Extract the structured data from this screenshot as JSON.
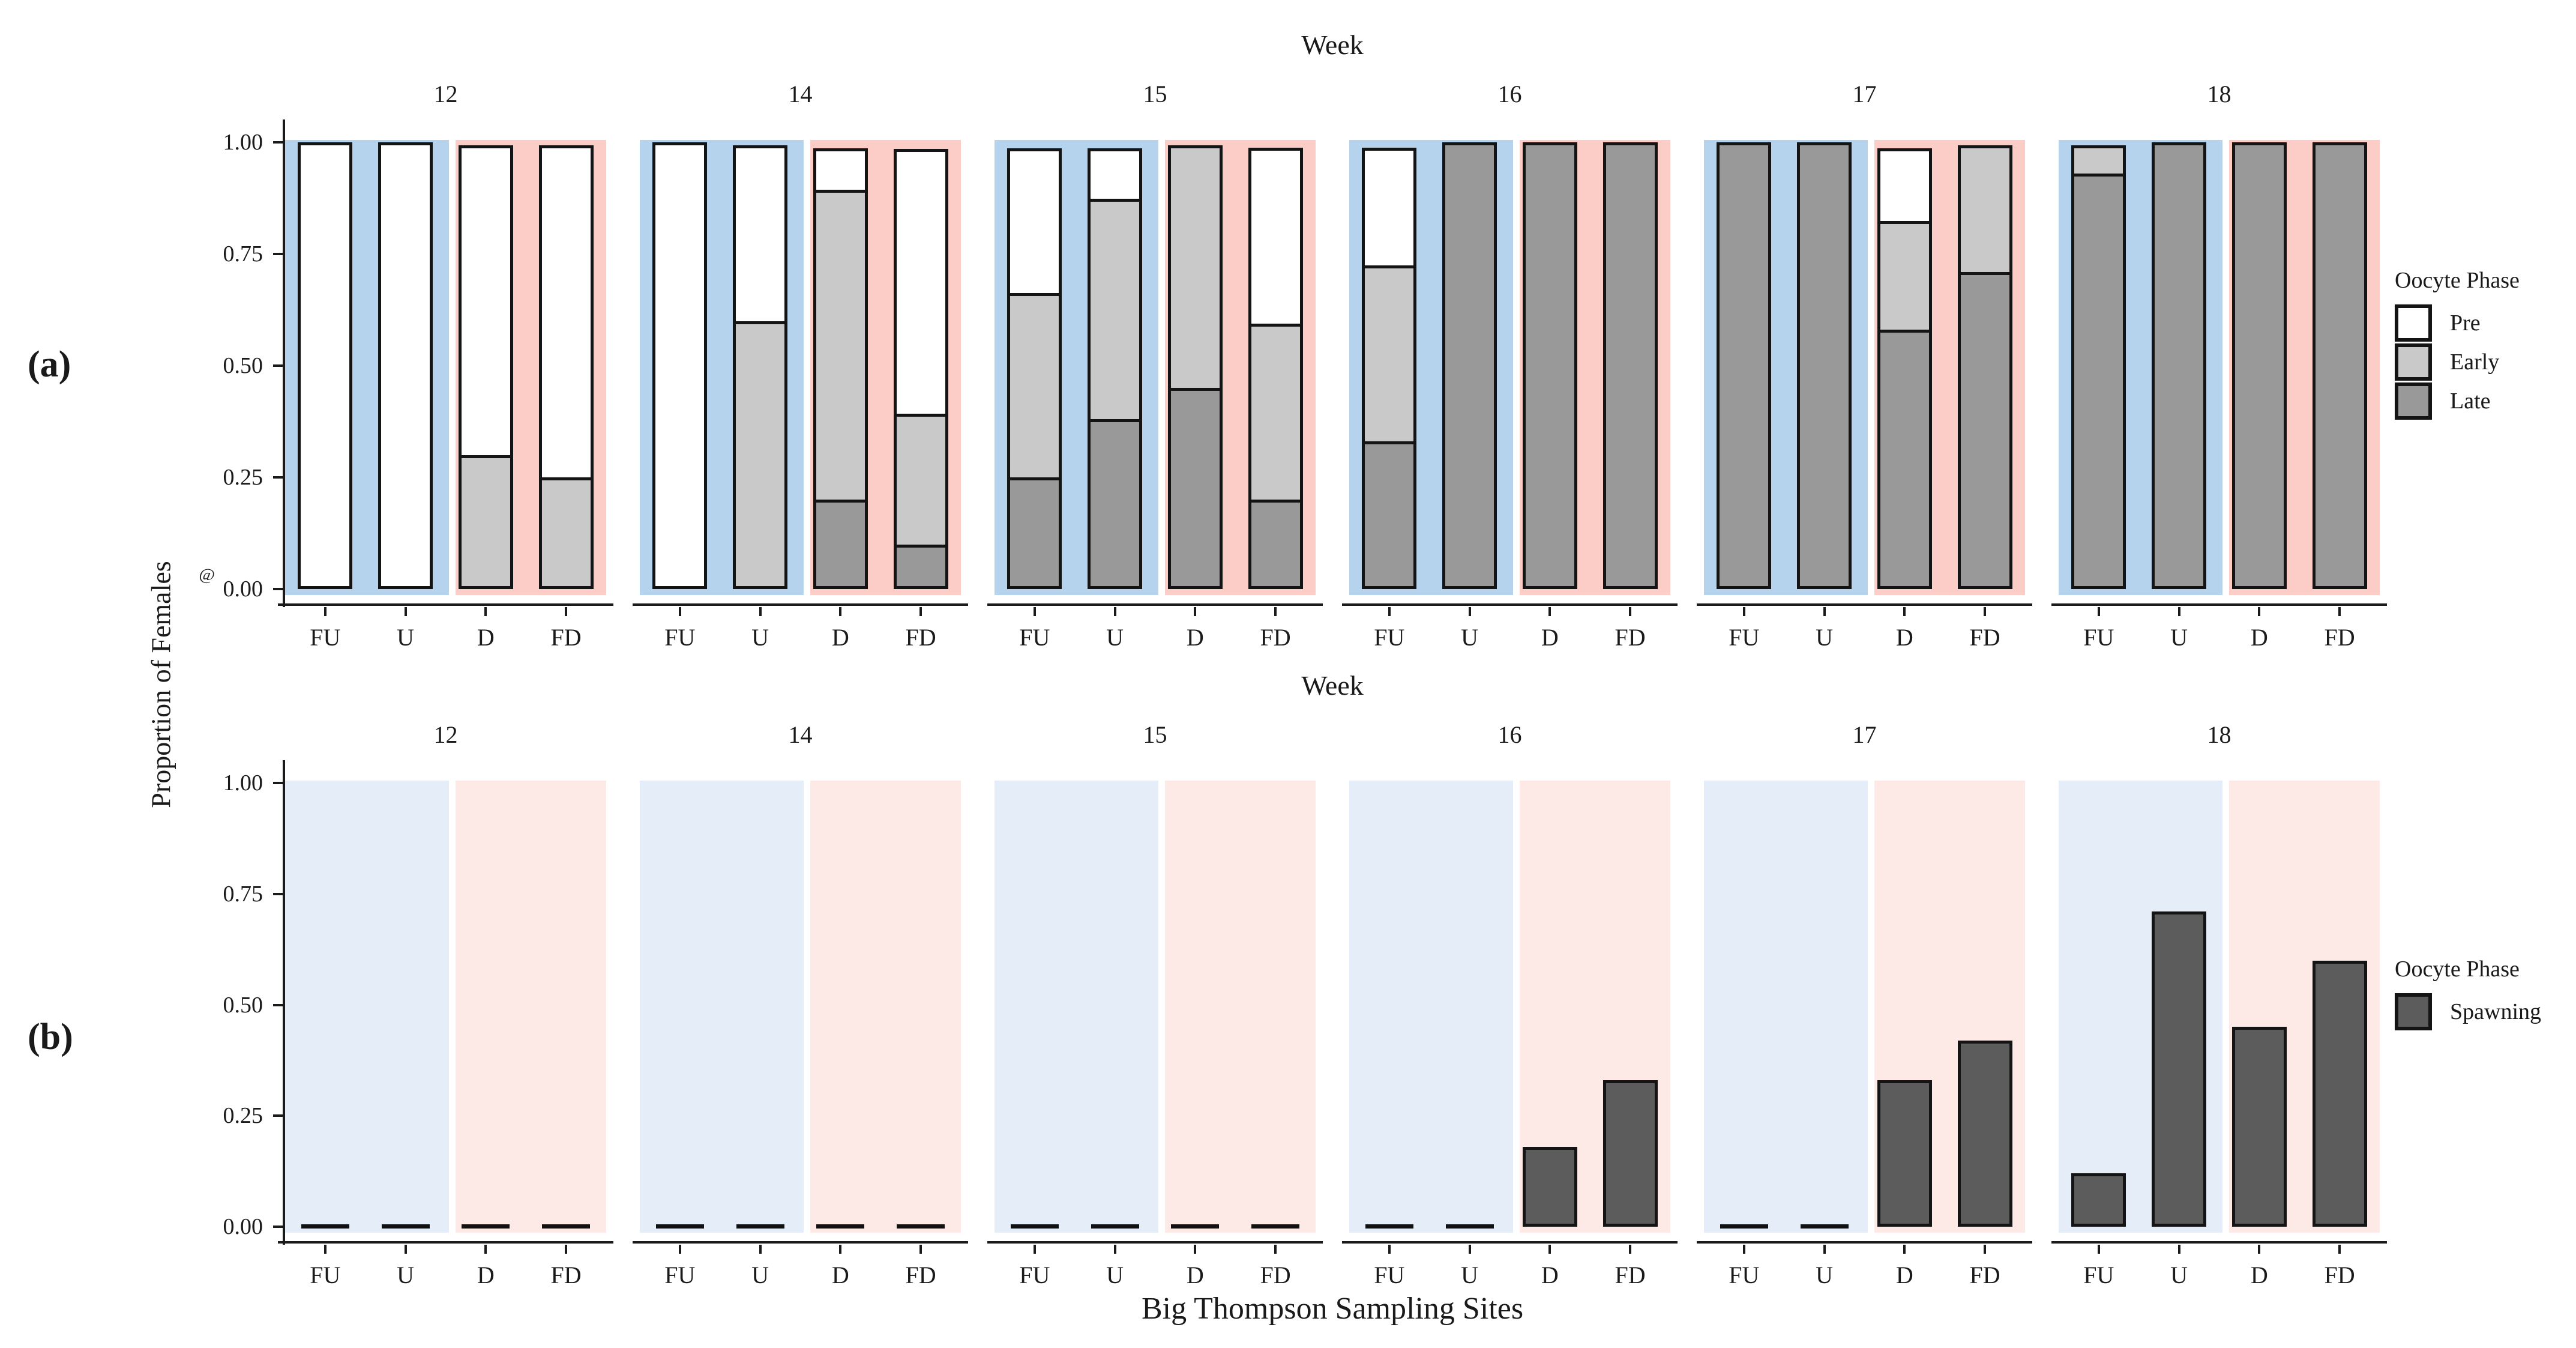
{
  "figure": {
    "panel_a_label": "(a)",
    "panel_b_label": "(b)",
    "ylabel": "Proportion of Females",
    "xlabel": "Big Thompson Sampling Sites",
    "stray_glyph": "@"
  },
  "colors": {
    "pre": "#ffffff",
    "early": "#c9c9c9",
    "late": "#999999",
    "spawning": "#5c5c5c",
    "band_blue_a": "#b5d3ec",
    "band_pink_a": "#fbcdc6",
    "band_blue_b": "#e4edf8",
    "band_pink_b": "#fdeae6",
    "bar_border": "#141414",
    "axis": "#1a1a1a"
  },
  "chart_data": [
    {
      "type": "bar",
      "subtype": "stacked-proportion",
      "panel": "a",
      "strip_title": "Week",
      "ylabel": "Proportion of Females",
      "ylim": [
        0,
        1
      ],
      "grid": false,
      "legend_position": "right",
      "yticks": [
        {
          "label": "1.00",
          "value": 1.0
        },
        {
          "label": "0.75",
          "value": 0.75
        },
        {
          "label": "0.50",
          "value": 0.5
        },
        {
          "label": "0.25",
          "value": 0.25
        },
        {
          "label": "0.00",
          "value": 0.0
        }
      ],
      "legend": {
        "title": "Oocyte Phase",
        "entries": [
          {
            "label": "Pre",
            "key": "pre"
          },
          {
            "label": "Early",
            "key": "early"
          },
          {
            "label": "Late",
            "key": "late"
          }
        ]
      },
      "stack_order_bottom_to_top": [
        "late",
        "early",
        "pre"
      ],
      "site_band_colors": {
        "FU": "blue",
        "U": "blue",
        "D": "pink",
        "FD": "pink"
      },
      "categories": [
        "FU",
        "U",
        "D",
        "FD"
      ],
      "facets": [
        {
          "week": "12",
          "bars": [
            {
              "site": "FU",
              "late": 0.0,
              "early": 0.0,
              "pre": 1.0
            },
            {
              "site": "U",
              "late": 0.0,
              "early": 0.0,
              "pre": 1.0
            },
            {
              "site": "D",
              "late": 0.0,
              "early": 0.3,
              "pre": 0.7
            },
            {
              "site": "FD",
              "late": 0.0,
              "early": 0.25,
              "pre": 0.75
            }
          ]
        },
        {
          "week": "14",
          "bars": [
            {
              "site": "FU",
              "late": 0.0,
              "early": 0.0,
              "pre": 1.0
            },
            {
              "site": "U",
              "late": 0.0,
              "early": 0.6,
              "pre": 0.4
            },
            {
              "site": "D",
              "late": 0.2,
              "early": 0.7,
              "pre": 0.1
            },
            {
              "site": "FD",
              "late": 0.1,
              "early": 0.3,
              "pre": 0.6
            }
          ]
        },
        {
          "week": "15",
          "bars": [
            {
              "site": "FU",
              "late": 0.25,
              "early": 0.42,
              "pre": 0.33
            },
            {
              "site": "U",
              "late": 0.38,
              "early": 0.5,
              "pre": 0.12
            },
            {
              "site": "D",
              "late": 0.45,
              "early": 0.55,
              "pre": 0.0
            },
            {
              "site": "FD",
              "late": 0.2,
              "early": 0.4,
              "pre": 0.4
            }
          ]
        },
        {
          "week": "16",
          "bars": [
            {
              "site": "FU",
              "late": 0.33,
              "early": 0.4,
              "pre": 0.27
            },
            {
              "site": "U",
              "late": 1.0,
              "early": 0.0,
              "pre": 0.0
            },
            {
              "site": "D",
              "late": 1.0,
              "early": 0.0,
              "pre": 0.0
            },
            {
              "site": "FD",
              "late": 1.0,
              "early": 0.0,
              "pre": 0.0
            }
          ]
        },
        {
          "week": "17",
          "bars": [
            {
              "site": "FU",
              "late": 1.0,
              "early": 0.0,
              "pre": 0.0
            },
            {
              "site": "U",
              "late": 1.0,
              "early": 0.0,
              "pre": 0.0
            },
            {
              "site": "D",
              "late": 0.58,
              "early": 0.25,
              "pre": 0.17
            },
            {
              "site": "FD",
              "late": 0.71,
              "early": 0.29,
              "pre": 0.0
            }
          ]
        },
        {
          "week": "18",
          "bars": [
            {
              "site": "FU",
              "late": 0.93,
              "early": 0.07,
              "pre": 0.0
            },
            {
              "site": "U",
              "late": 1.0,
              "early": 0.0,
              "pre": 0.0
            },
            {
              "site": "D",
              "late": 1.0,
              "early": 0.0,
              "pre": 0.0
            },
            {
              "site": "FD",
              "late": 1.0,
              "early": 0.0,
              "pre": 0.0
            }
          ]
        }
      ]
    },
    {
      "type": "bar",
      "subtype": "proportion",
      "panel": "b",
      "strip_title": "Week",
      "xlabel": "Big Thompson Sampling Sites",
      "ylim": [
        0,
        1
      ],
      "grid": false,
      "legend_position": "right",
      "yticks": [
        {
          "label": "1.00",
          "value": 1.0
        },
        {
          "label": "0.75",
          "value": 0.75
        },
        {
          "label": "0.50",
          "value": 0.5
        },
        {
          "label": "0.25",
          "value": 0.25
        },
        {
          "label": "0.00",
          "value": 0.0
        }
      ],
      "legend": {
        "title": "Oocyte Phase",
        "entries": [
          {
            "label": "Spawning",
            "key": "spawning"
          }
        ]
      },
      "stack_order_bottom_to_top": [
        "spawning"
      ],
      "site_band_colors": {
        "FU": "blue",
        "U": "blue",
        "D": "pink",
        "FD": "pink"
      },
      "categories": [
        "FU",
        "U",
        "D",
        "FD"
      ],
      "facets": [
        {
          "week": "12",
          "bars": [
            {
              "site": "FU",
              "spawning": 0.0
            },
            {
              "site": "U",
              "spawning": 0.0
            },
            {
              "site": "D",
              "spawning": 0.0
            },
            {
              "site": "FD",
              "spawning": 0.0
            }
          ]
        },
        {
          "week": "14",
          "bars": [
            {
              "site": "FU",
              "spawning": 0.0
            },
            {
              "site": "U",
              "spawning": 0.0
            },
            {
              "site": "D",
              "spawning": 0.0
            },
            {
              "site": "FD",
              "spawning": 0.0
            }
          ]
        },
        {
          "week": "15",
          "bars": [
            {
              "site": "FU",
              "spawning": 0.0
            },
            {
              "site": "U",
              "spawning": 0.0
            },
            {
              "site": "D",
              "spawning": 0.0
            },
            {
              "site": "FD",
              "spawning": 0.0
            }
          ]
        },
        {
          "week": "16",
          "bars": [
            {
              "site": "FU",
              "spawning": 0.0
            },
            {
              "site": "U",
              "spawning": 0.0
            },
            {
              "site": "D",
              "spawning": 0.18
            },
            {
              "site": "FD",
              "spawning": 0.33
            }
          ]
        },
        {
          "week": "17",
          "bars": [
            {
              "site": "FU",
              "spawning": 0.0
            },
            {
              "site": "U",
              "spawning": 0.0
            },
            {
              "site": "D",
              "spawning": 0.33
            },
            {
              "site": "FD",
              "spawning": 0.42
            }
          ]
        },
        {
          "week": "18",
          "bars": [
            {
              "site": "FU",
              "spawning": 0.12
            },
            {
              "site": "U",
              "spawning": 0.71
            },
            {
              "site": "D",
              "spawning": 0.45
            },
            {
              "site": "FD",
              "spawning": 0.6
            }
          ]
        }
      ]
    }
  ]
}
